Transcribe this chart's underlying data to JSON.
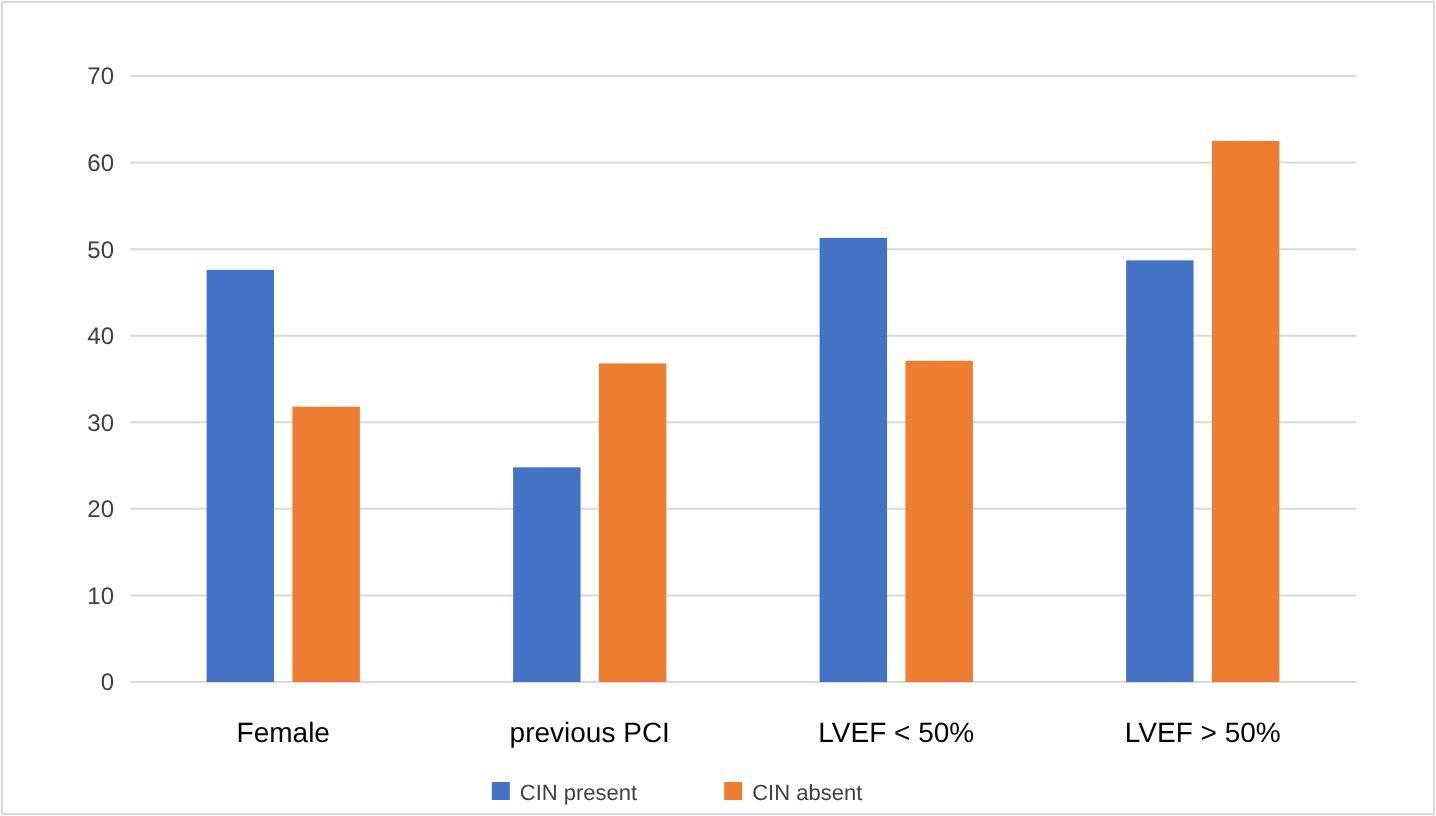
{
  "chart_data": {
    "type": "bar",
    "categories": [
      "Female",
      "previous PCI",
      "LVEF < 50%",
      "LVEF > 50%"
    ],
    "series": [
      {
        "name": "CIN present",
        "color": "#4472c4",
        "values": [
          47.6,
          24.8,
          51.3,
          48.7
        ]
      },
      {
        "name": "CIN absent",
        "color": "#ed7d31",
        "values": [
          31.8,
          36.8,
          37.1,
          62.5
        ]
      }
    ],
    "ylim": [
      0,
      70
    ],
    "yticks": [
      0,
      10,
      20,
      30,
      40,
      50,
      60,
      70
    ],
    "grid": "y",
    "legend": "bottom"
  }
}
